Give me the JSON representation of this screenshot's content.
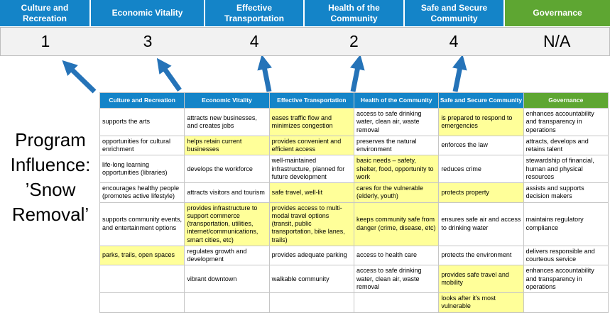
{
  "title": "Program Influence: ’Snow Removal’",
  "colors": {
    "blue": "#1484C8",
    "green": "#5EA632",
    "yellow": "#FFFF99",
    "arrow": "#2573B8",
    "score_bg": "#F2F2F2"
  },
  "scoreboard": [
    {
      "label": "Culture and Recreation",
      "score": "1",
      "theme": "blue"
    },
    {
      "label": "Economic Vitality",
      "score": "3",
      "theme": "blue"
    },
    {
      "label": "Effective Transportation",
      "score": "4",
      "theme": "blue"
    },
    {
      "label": "Health of the Community",
      "score": "2",
      "theme": "blue"
    },
    {
      "label": "Safe and Secure Community",
      "score": "4",
      "theme": "blue"
    },
    {
      "label": "Governance",
      "score": "N/A",
      "theme": "green"
    }
  ],
  "table": {
    "headers": [
      {
        "label": "Culture and Recreation",
        "theme": "blue"
      },
      {
        "label": "Economic Vitality",
        "theme": "blue"
      },
      {
        "label": "Effective Transportation",
        "theme": "blue"
      },
      {
        "label": "Health of the Community",
        "theme": "blue"
      },
      {
        "label": "Safe and Secure Community",
        "theme": "blue"
      },
      {
        "label": "Governance",
        "theme": "green"
      }
    ],
    "rows": [
      [
        {
          "text": "supports the arts",
          "highlight": false
        },
        {
          "text": "attracts new businesses, and creates jobs",
          "highlight": false
        },
        {
          "text": "eases traffic flow and minimizes congestion",
          "highlight": true
        },
        {
          "text": "access to safe drinking water, clean air, waste removal",
          "highlight": false
        },
        {
          "text": "is prepared to respond to emergencies",
          "highlight": true
        },
        {
          "text": "enhances accountability and transparency in operations",
          "highlight": false
        }
      ],
      [
        {
          "text": "opportunities for cultural enrichment",
          "highlight": false
        },
        {
          "text": "helps retain current businesses",
          "highlight": true
        },
        {
          "text": "provides convenient and efficient access",
          "highlight": true
        },
        {
          "text": "preserves the natural environment",
          "highlight": false
        },
        {
          "text": "enforces the law",
          "highlight": false
        },
        {
          "text": "attracts, develops and retains talent",
          "highlight": false
        }
      ],
      [
        {
          "text": "life-long learning opportunities (libraries)",
          "highlight": false
        },
        {
          "text": "develops the workforce",
          "highlight": false
        },
        {
          "text": "well-maintained infrastructure, planned for future development",
          "highlight": false
        },
        {
          "text": "basic needs – safety, shelter, food, opportunity to work",
          "highlight": true
        },
        {
          "text": "reduces crime",
          "highlight": false
        },
        {
          "text": "stewardship of financial, human and physical resources",
          "highlight": false
        }
      ],
      [
        {
          "text": "encourages healthy people (promotes active lifestyle)",
          "highlight": false
        },
        {
          "text": "attracts visitors and tourism",
          "highlight": false
        },
        {
          "text": "safe travel, well-lit",
          "highlight": true
        },
        {
          "text": "cares for the vulnerable (elderly, youth)",
          "highlight": true
        },
        {
          "text": "protects property",
          "highlight": true
        },
        {
          "text": "assists and supports decision makers",
          "highlight": false
        }
      ],
      [
        {
          "text": "supports community events, and entertainment options",
          "highlight": false
        },
        {
          "text": "provides infrastructure to support commerce (transportation, utilities, internet/communications, smart cities, etc)",
          "highlight": true
        },
        {
          "text": "provides access to multi-modal travel options (transit, public transportation, bike lanes, trails)",
          "highlight": true
        },
        {
          "text": "keeps community safe from danger (crime, disease, etc)",
          "highlight": true
        },
        {
          "text": "ensures safe air and access to drinking water",
          "highlight": false
        },
        {
          "text": "maintains regulatory compliance",
          "highlight": false
        }
      ],
      [
        {
          "text": "parks, trails, open spaces",
          "highlight": true
        },
        {
          "text": "regulates growth and development",
          "highlight": false
        },
        {
          "text": "provides adequate parking",
          "highlight": false
        },
        {
          "text": "access to health care",
          "highlight": false
        },
        {
          "text": "protects the environment",
          "highlight": false
        },
        {
          "text": "delivers responsible and courteous service",
          "highlight": false
        }
      ],
      [
        {
          "text": "",
          "highlight": false
        },
        {
          "text": "vibrant downtown",
          "highlight": false
        },
        {
          "text": "walkable community",
          "highlight": false
        },
        {
          "text": "access to safe drinking water, clean air, waste removal",
          "highlight": false
        },
        {
          "text": "provides safe travel and mobility",
          "highlight": true
        },
        {
          "text": "enhances accountability and transparency in operations",
          "highlight": false
        }
      ],
      [
        {
          "text": "",
          "highlight": false
        },
        {
          "text": "",
          "highlight": false
        },
        {
          "text": "",
          "highlight": false
        },
        {
          "text": "",
          "highlight": false
        },
        {
          "text": "looks after it's most vulnerable",
          "highlight": true
        },
        {
          "text": "",
          "highlight": false
        }
      ]
    ]
  }
}
